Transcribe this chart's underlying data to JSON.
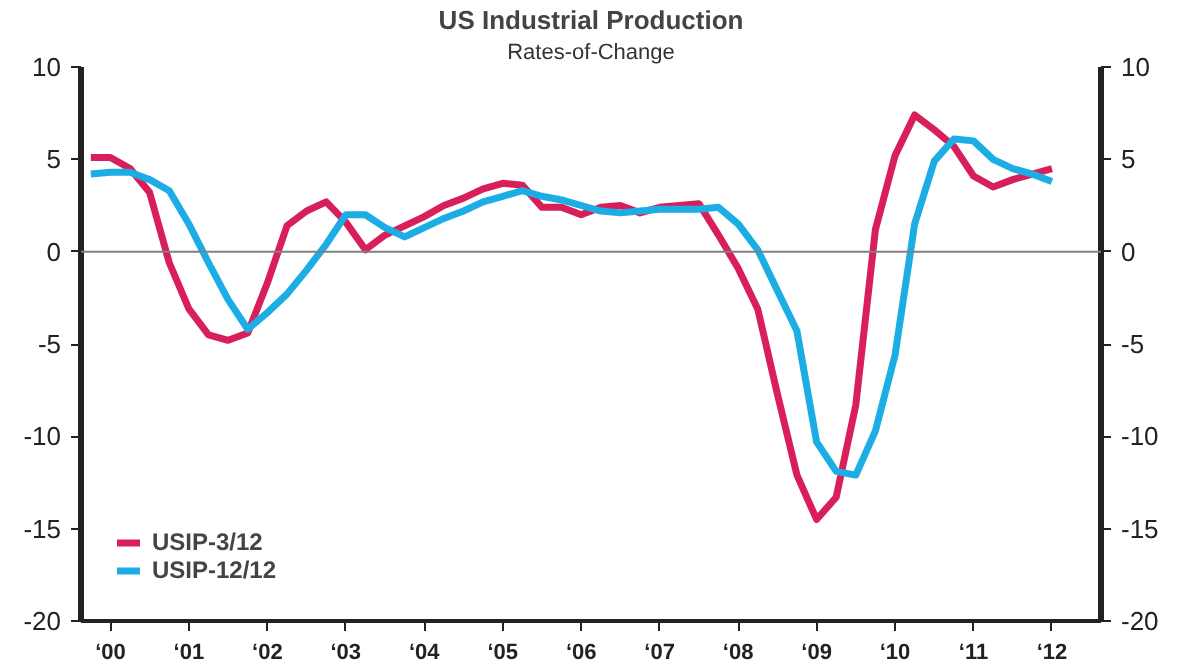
{
  "chart_data": {
    "type": "line",
    "title": "US Industrial Production",
    "subtitle": "Rates-of-Change",
    "categories": [
      null,
      "‘00",
      null,
      null,
      null,
      "‘01",
      null,
      null,
      null,
      "‘02",
      null,
      null,
      null,
      "‘03",
      null,
      null,
      null,
      "‘04",
      null,
      null,
      null,
      "‘05",
      null,
      null,
      null,
      "‘06",
      null,
      null,
      null,
      "‘07",
      null,
      null,
      null,
      "‘08",
      null,
      null,
      null,
      "‘09",
      null,
      null,
      null,
      "‘10",
      null,
      null,
      null,
      "‘11",
      null,
      null,
      null,
      "‘12",
      null,
      null
    ],
    "ylim": [
      -20,
      10
    ],
    "yticks": [
      -20,
      -15,
      -10,
      -5,
      0,
      5,
      10
    ],
    "y2lim": [
      -20,
      10
    ],
    "y2ticks": [
      -20,
      -15,
      -10,
      -5,
      0,
      5,
      10
    ],
    "grid": false,
    "legend": "bottom left",
    "line_style": "solid",
    "ref_lines": [
      {
        "axis": "y",
        "value": 0,
        "color": "#808080"
      }
    ],
    "series": [
      {
        "name": "USIP-3/12",
        "color": "#d81f5a",
        "values": [
          5.1,
          5.1,
          4.5,
          3.2,
          -0.6,
          -3.1,
          -4.5,
          -4.8,
          -4.4,
          -1.7,
          1.4,
          2.2,
          2.7,
          1.6,
          0.1,
          0.9,
          1.4,
          1.9,
          2.5,
          2.9,
          3.4,
          3.7,
          3.6,
          2.4,
          2.4,
          2.0,
          2.4,
          2.5,
          2.1,
          2.4,
          2.5,
          2.6,
          0.9,
          -0.9,
          -3.1,
          -7.7,
          -12.1,
          -14.5,
          -13.3,
          -8.3,
          1.2,
          5.2,
          7.4,
          6.6,
          5.7,
          4.1,
          3.5,
          3.9,
          4.2,
          4.5,
          null,
          null
        ]
      },
      {
        "name": "USIP-12/12",
        "color": "#1cade4",
        "values": [
          4.2,
          4.3,
          4.3,
          3.9,
          3.3,
          1.5,
          -0.6,
          -2.6,
          -4.2,
          -3.3,
          -2.3,
          -1.0,
          0.4,
          2.0,
          2.0,
          1.3,
          0.8,
          1.3,
          1.8,
          2.2,
          2.7,
          3.0,
          3.3,
          3.0,
          2.8,
          2.5,
          2.2,
          2.1,
          2.2,
          2.3,
          2.3,
          2.3,
          2.4,
          1.5,
          0.1,
          -2.1,
          -4.3,
          -10.3,
          -11.9,
          -12.1,
          -9.7,
          -5.6,
          1.5,
          4.9,
          6.1,
          6.0,
          5.0,
          4.5,
          4.2,
          3.8,
          null,
          null
        ]
      }
    ]
  }
}
